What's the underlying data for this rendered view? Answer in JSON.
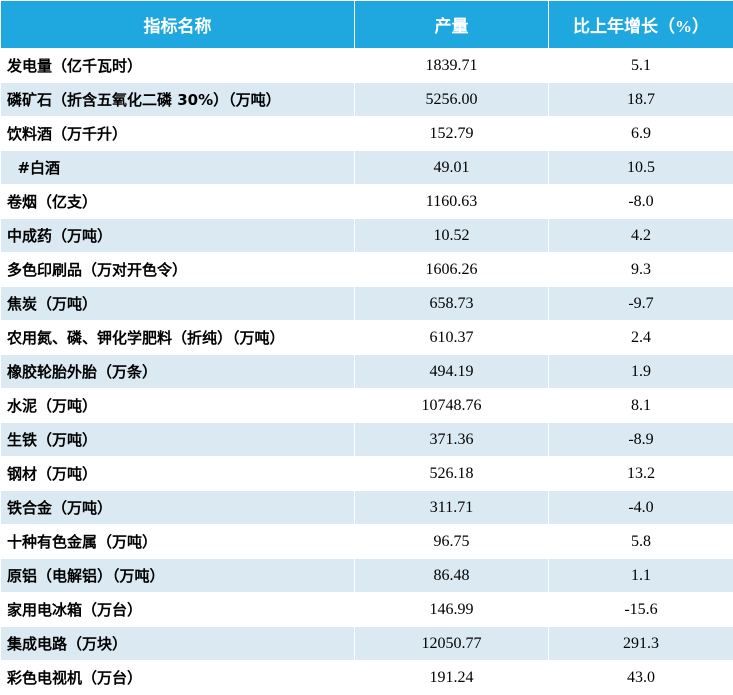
{
  "header": {
    "col_name": "指标名称",
    "col_output": "产量",
    "col_growth": "比上年增长（%）"
  },
  "rows": [
    {
      "name": "发电量（亿千瓦时）",
      "output": "1839.71",
      "growth": "5.1"
    },
    {
      "name": "磷矿石（折含五氧化二磷 30%）（万吨）",
      "output": "5256.00",
      "growth": "18.7"
    },
    {
      "name": "饮料酒（万千升）",
      "output": "152.79",
      "growth": "6.9"
    },
    {
      "name": "  #白酒",
      "output": "49.01",
      "growth": "10.5"
    },
    {
      "name": "卷烟（亿支）",
      "output": "1160.63",
      "growth": "-8.0"
    },
    {
      "name": "中成药（万吨）",
      "output": "10.52",
      "growth": "4.2"
    },
    {
      "name": "多色印刷品（万对开色令）",
      "output": "1606.26",
      "growth": "9.3"
    },
    {
      "name": "焦炭（万吨）",
      "output": "658.73",
      "growth": "-9.7"
    },
    {
      "name": "农用氮、磷、钾化学肥料（折纯）（万吨）",
      "output": "610.37",
      "growth": "2.4"
    },
    {
      "name": "橡胶轮胎外胎（万条）",
      "output": "494.19",
      "growth": "1.9"
    },
    {
      "name": "水泥（万吨）",
      "output": "10748.76",
      "growth": "8.1"
    },
    {
      "name": "生铁（万吨）",
      "output": "371.36",
      "growth": "-8.9"
    },
    {
      "name": "钢材（万吨）",
      "output": "526.18",
      "growth": "13.2"
    },
    {
      "name": "铁合金（万吨）",
      "output": "311.71",
      "growth": "-4.0"
    },
    {
      "name": "十种有色金属（万吨）",
      "output": "96.75",
      "growth": "5.8"
    },
    {
      "name": "原铝（电解铝）（万吨）",
      "output": "86.48",
      "growth": "1.1"
    },
    {
      "name": "家用电冰箱（万台）",
      "output": "146.99",
      "growth": "-15.6"
    },
    {
      "name": "集成电路（万块）",
      "output": "12050.77",
      "growth": "291.3"
    },
    {
      "name": "彩色电视机（万台）",
      "output": "191.24",
      "growth": "43.0"
    }
  ],
  "colors": {
    "header_bg": "#1fa8e0",
    "stripe_bg": "#dbeaf2"
  }
}
